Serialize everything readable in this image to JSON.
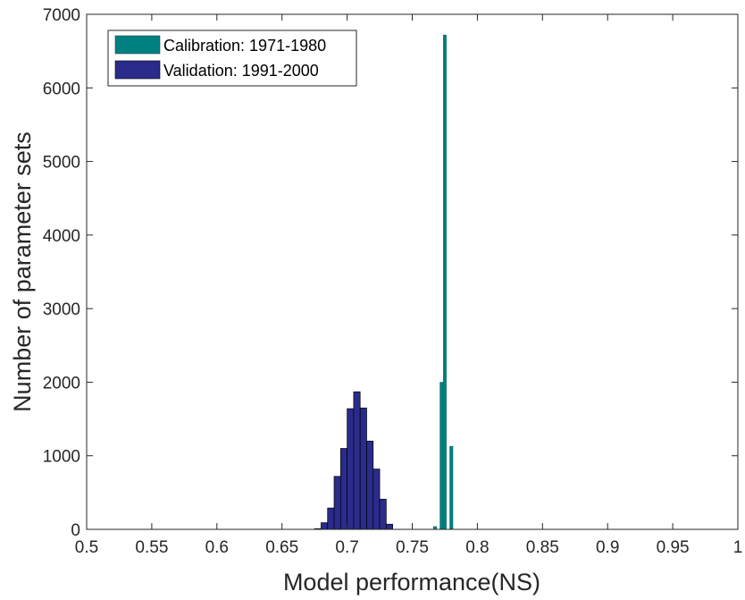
{
  "chart_data": {
    "type": "bar",
    "xlabel": "Model performance(NS)",
    "ylabel": "Number of parameter sets",
    "xlim": [
      0.5,
      1.0
    ],
    "ylim": [
      0,
      7000
    ],
    "xticks": [
      0.5,
      0.55,
      0.6,
      0.65,
      0.7,
      0.75,
      0.8,
      0.85,
      0.9,
      0.95,
      1.0
    ],
    "xtick_labels": [
      "0.5",
      "0.55",
      "0.6",
      "0.65",
      "0.7",
      "0.75",
      "0.8",
      "0.85",
      "0.9",
      "0.95",
      "1"
    ],
    "yticks": [
      0,
      1000,
      2000,
      3000,
      4000,
      5000,
      6000,
      7000
    ],
    "ytick_labels": [
      "0",
      "1000",
      "2000",
      "3000",
      "4000",
      "5000",
      "6000",
      "7000"
    ],
    "grid": false,
    "legend_position": "top-left",
    "series": [
      {
        "name": "Calibration: 1971-1980",
        "color": "#008080",
        "bin_width": 0.0025,
        "x": [
          0.7675,
          0.77,
          0.7725,
          0.775,
          0.7775,
          0.78
        ],
        "values": [
          40,
          0,
          2000,
          6720,
          0,
          1130
        ]
      },
      {
        "name": "Validation: 1991-2000",
        "color": "#2b2b8c",
        "bin_width": 0.005,
        "x": [
          0.6775,
          0.6825,
          0.6875,
          0.6925,
          0.6975,
          0.7025,
          0.7075,
          0.7125,
          0.7175,
          0.7225,
          0.7275,
          0.7325
        ],
        "values": [
          10,
          90,
          290,
          720,
          1100,
          1640,
          1870,
          1650,
          1200,
          820,
          410,
          70
        ]
      }
    ]
  }
}
